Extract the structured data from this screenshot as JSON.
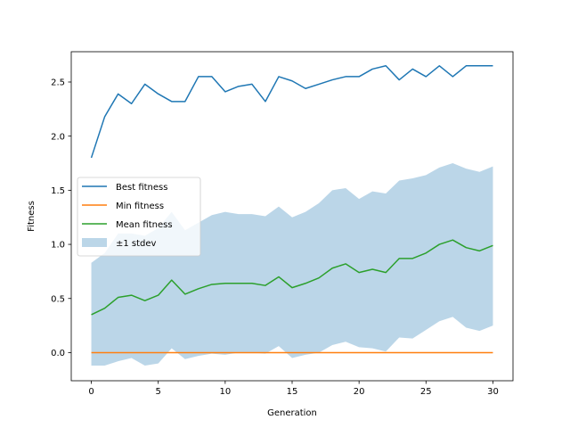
{
  "chart_data": {
    "type": "line",
    "title": "",
    "xlabel": "Generation",
    "ylabel": "Fitness",
    "xlim": [
      -1.5,
      31.5
    ],
    "ylim": [
      -0.26,
      2.78
    ],
    "grid": false,
    "legend_placement": "center-left",
    "x": [
      0,
      1,
      2,
      3,
      4,
      5,
      6,
      7,
      8,
      9,
      10,
      11,
      12,
      13,
      14,
      15,
      16,
      17,
      18,
      19,
      20,
      21,
      22,
      23,
      24,
      25,
      26,
      27,
      28,
      29,
      30
    ],
    "x_ticks": [
      0,
      5,
      10,
      15,
      20,
      25,
      30
    ],
    "x_tick_labels": [
      "0",
      "5",
      "10",
      "15",
      "20",
      "25",
      "30"
    ],
    "y_ticks": [
      0,
      0.5,
      1.0,
      1.5,
      2.0,
      2.5
    ],
    "y_tick_labels": [
      "0.0",
      "0.5",
      "1.0",
      "1.5",
      "2.0",
      "2.5"
    ],
    "series": [
      {
        "name": "Best fitness",
        "color": "#1f77b4",
        "values": [
          1.8,
          2.18,
          2.39,
          2.3,
          2.48,
          2.39,
          2.32,
          2.32,
          2.55,
          2.55,
          2.41,
          2.46,
          2.48,
          2.32,
          2.55,
          2.51,
          2.44,
          2.48,
          2.52,
          2.55,
          2.55,
          2.62,
          2.65,
          2.52,
          2.62,
          2.55,
          2.65,
          2.55,
          2.65,
          2.65,
          2.65
        ]
      },
      {
        "name": "Min fitness",
        "color": "#ff7f0e",
        "values": [
          0,
          0,
          0,
          0,
          0,
          0,
          0,
          0,
          0,
          0,
          0,
          0,
          0,
          0,
          0,
          0,
          0,
          0,
          0,
          0,
          0,
          0,
          0,
          0,
          0,
          0,
          0,
          0,
          0,
          0,
          0
        ]
      },
      {
        "name": "Mean fitness",
        "color": "#2ca02c",
        "values": [
          0.35,
          0.41,
          0.51,
          0.53,
          0.48,
          0.53,
          0.67,
          0.54,
          0.59,
          0.63,
          0.64,
          0.64,
          0.64,
          0.62,
          0.7,
          0.6,
          0.64,
          0.69,
          0.78,
          0.82,
          0.74,
          0.77,
          0.74,
          0.87,
          0.87,
          0.92,
          1.0,
          1.04,
          0.97,
          0.94,
          0.99
        ]
      }
    ],
    "band": {
      "name": "±1 stdev",
      "color": "#1f77b4",
      "opacity": 0.3,
      "upper": [
        0.83,
        0.92,
        1.1,
        1.1,
        1.08,
        1.15,
        1.3,
        1.13,
        1.2,
        1.27,
        1.3,
        1.28,
        1.28,
        1.26,
        1.35,
        1.25,
        1.3,
        1.38,
        1.5,
        1.52,
        1.42,
        1.49,
        1.47,
        1.59,
        1.61,
        1.64,
        1.71,
        1.75,
        1.7,
        1.67,
        1.72
      ],
      "lower": [
        -0.12,
        -0.12,
        -0.08,
        -0.05,
        -0.12,
        -0.1,
        0.04,
        -0.06,
        -0.03,
        -0.01,
        -0.02,
        0.0,
        0.0,
        -0.01,
        0.06,
        -0.05,
        -0.02,
        0.0,
        0.07,
        0.1,
        0.05,
        0.04,
        0.01,
        0.14,
        0.13,
        0.21,
        0.29,
        0.33,
        0.23,
        0.2,
        0.25
      ]
    }
  }
}
